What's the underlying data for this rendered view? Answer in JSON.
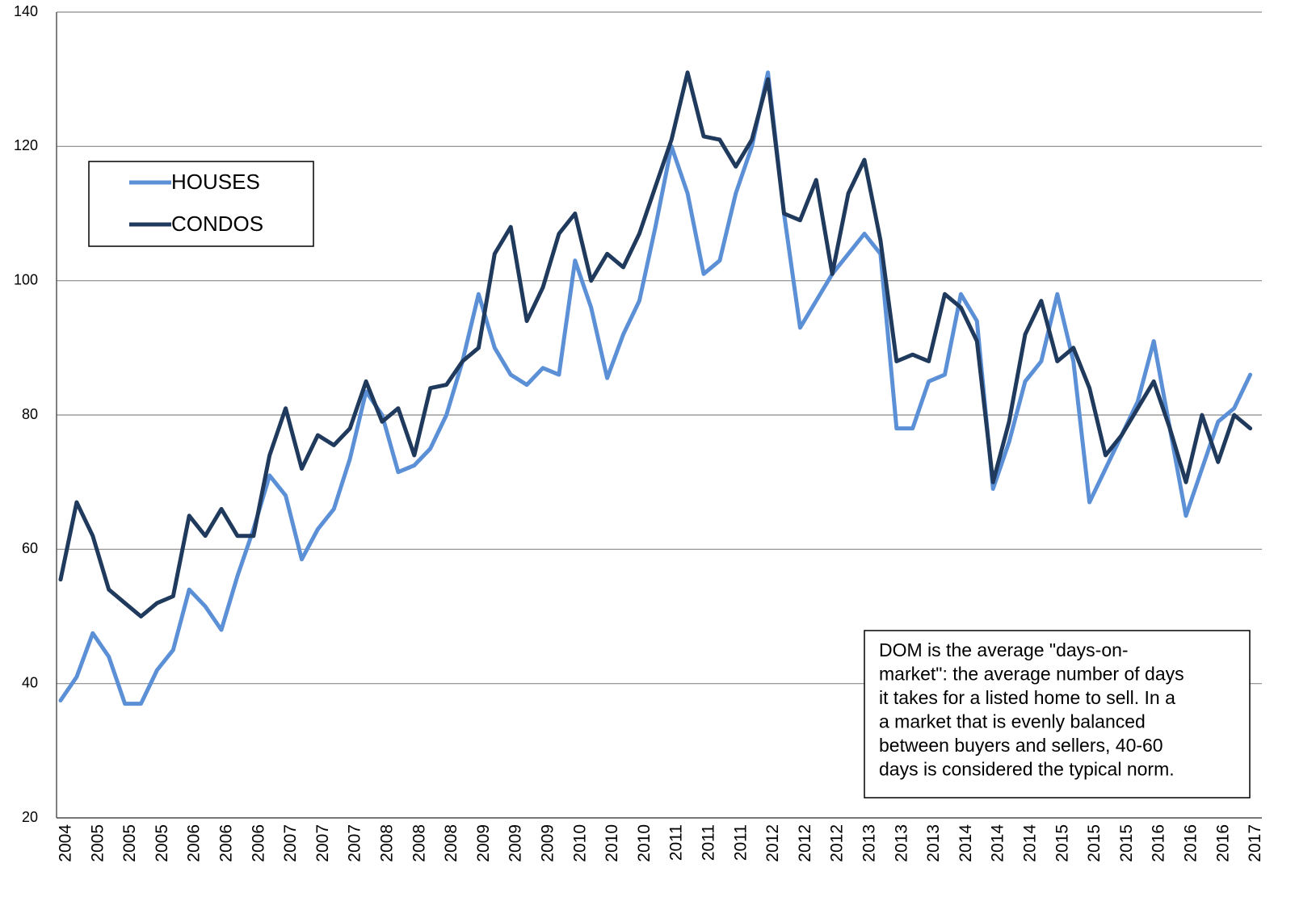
{
  "chart_data": {
    "type": "line",
    "categories": [
      "2004",
      null,
      "2005",
      null,
      "2005",
      null,
      "2005",
      null,
      "2006",
      null,
      "2006",
      null,
      "2006",
      null,
      "2007",
      null,
      "2007",
      null,
      "2007",
      null,
      "2008",
      null,
      "2008",
      null,
      "2008",
      null,
      "2009",
      null,
      "2009",
      null,
      "2009",
      null,
      "2010",
      null,
      "2010",
      null,
      "2010",
      null,
      "2011",
      null,
      "2011",
      null,
      "2011",
      null,
      "2012",
      null,
      "2012",
      null,
      "2012",
      null,
      "2013",
      null,
      "2013",
      null,
      "2013",
      null,
      "2014",
      null,
      "2014",
      null,
      "2014",
      null,
      "2015",
      null,
      "2015",
      null,
      "2015",
      null,
      "2016",
      null,
      "2016",
      null,
      "2016",
      null,
      "2017"
    ],
    "series": [
      {
        "name": "HOUSES",
        "color": "#5b8fd6",
        "values": [
          37.5,
          41,
          47.5,
          44,
          37,
          37,
          42,
          45,
          54,
          51.5,
          48,
          56,
          63,
          71,
          68,
          58.5,
          63,
          66,
          73.5,
          83.5,
          80,
          71.5,
          72.5,
          75,
          80,
          88,
          98,
          90,
          86,
          84.5,
          87,
          86,
          103,
          96,
          85.5,
          92,
          97,
          108,
          120,
          113,
          101,
          103,
          113,
          120,
          131,
          110,
          93,
          97,
          101,
          104,
          107,
          104,
          78,
          78,
          85,
          86,
          98,
          94,
          69,
          76,
          85,
          88,
          98,
          88,
          67,
          72,
          77,
          82,
          91,
          78,
          65,
          72,
          79,
          81,
          86
        ]
      },
      {
        "name": "CONDOS",
        "color": "#1f3a5c",
        "values": [
          55.5,
          67,
          62,
          54,
          52,
          50,
          52,
          53,
          65,
          62,
          66,
          62,
          62,
          74,
          81,
          72,
          77,
          75.5,
          78,
          85,
          79,
          81,
          74,
          84,
          84.5,
          88,
          90,
          104,
          108,
          94,
          99,
          107,
          110,
          100,
          104,
          102,
          107,
          114,
          121,
          131,
          121.5,
          121,
          117,
          121,
          130,
          110,
          109,
          115,
          101,
          113,
          118,
          106,
          88,
          89,
          88,
          98,
          96,
          91,
          70,
          79,
          92,
          97,
          88,
          90,
          84,
          74,
          77,
          81,
          85,
          78,
          70,
          80,
          73,
          80,
          78
        ]
      }
    ],
    "ylim": [
      20,
      140
    ],
    "yticks": [
      20,
      40,
      60,
      80,
      100,
      120,
      140
    ],
    "grid": true,
    "legend": "upper left",
    "annotation": [
      "DOM is the average \"days-on-",
      "market\": the average number of days",
      "it takes for a listed home to sell.  In a",
      "a market that is evenly balanced",
      "between buyers and sellers, 40-60",
      "days is considered the typical norm."
    ]
  }
}
